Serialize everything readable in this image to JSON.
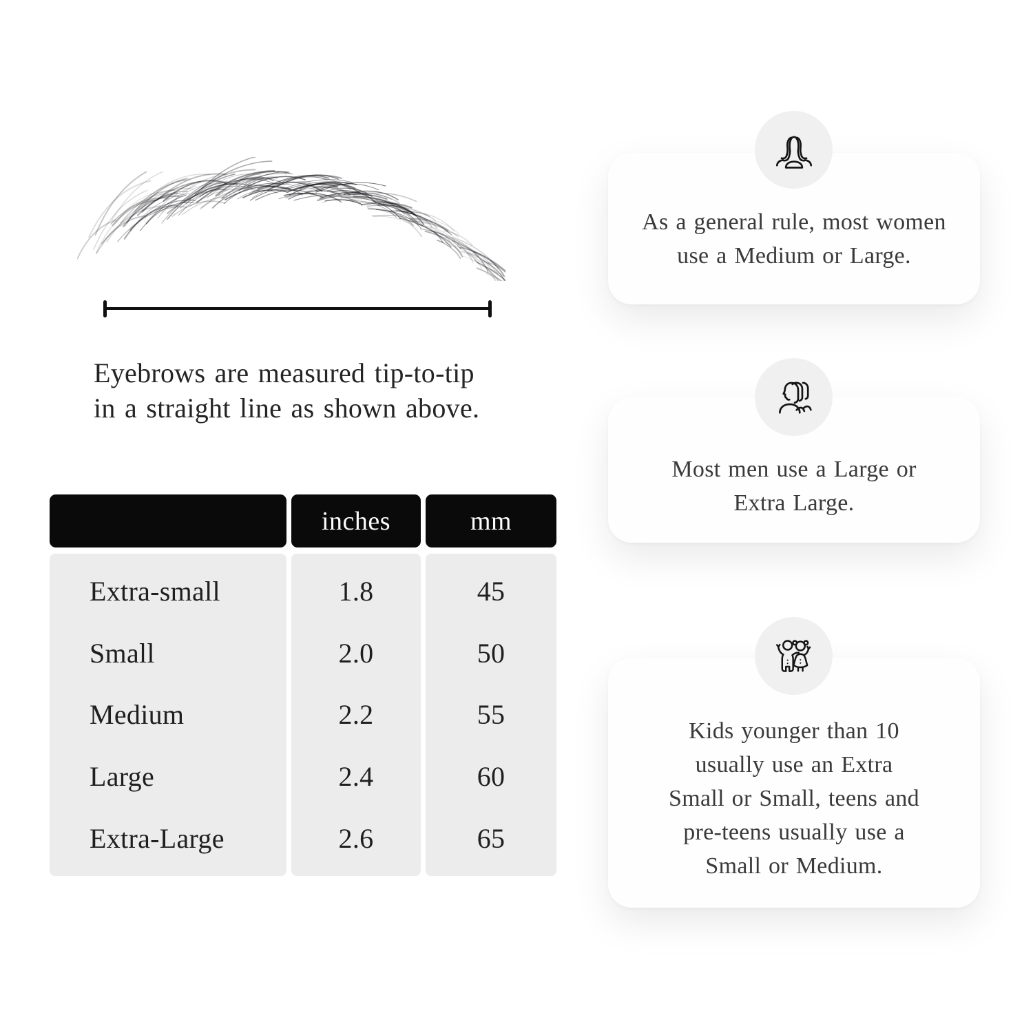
{
  "page": {
    "background": "#ffffff",
    "text_color": "#242424"
  },
  "measurement": {
    "caption_lines": [
      "Eyebrows are measured tip-to-tip",
      "in a straight line as shown above."
    ]
  },
  "size_table": {
    "header_bg": "#0a0a0a",
    "body_bg": "#ececec",
    "columns": [
      "",
      "inches",
      "mm"
    ],
    "rows": [
      {
        "size": "Extra-small",
        "inches": "1.8",
        "mm": "45"
      },
      {
        "size": "Small",
        "inches": "2.0",
        "mm": "50"
      },
      {
        "size": "Medium",
        "inches": "2.2",
        "mm": "55"
      },
      {
        "size": "Large",
        "inches": "2.4",
        "mm": "60"
      },
      {
        "size": "Extra-Large",
        "inches": "2.6",
        "mm": "65"
      }
    ]
  },
  "cards": [
    {
      "icon": "women-group-icon",
      "lines": [
        "As a general rule, most women",
        "use a Medium or Large."
      ]
    },
    {
      "icon": "men-group-icon",
      "lines": [
        "Most men use a Large or",
        "Extra Large."
      ]
    },
    {
      "icon": "children-icon",
      "lines": [
        "Kids younger than 10",
        "usually use an Extra",
        "Small or Small, teens and",
        "pre-teens usually use a",
        "Small or Medium."
      ]
    }
  ],
  "badge_bg": "#f0f0f0"
}
